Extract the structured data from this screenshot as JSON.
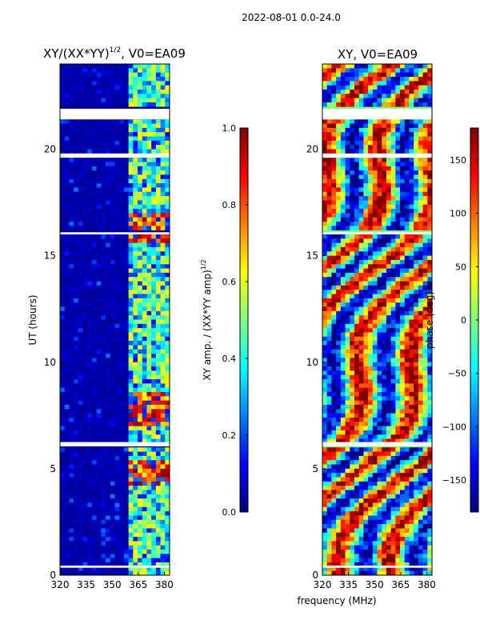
{
  "page_title": "2022-08-01 0.0-24.0",
  "colors": {
    "jet": [
      "#00007f",
      "#0000ff",
      "#007fff",
      "#00ffff",
      "#7fff7f",
      "#ffff00",
      "#ff7f00",
      "#ff0000",
      "#7f0000"
    ],
    "gap": "#ffffff",
    "axis": "#000000"
  },
  "chart_data": [
    {
      "type": "heatmap",
      "title_prefix": "XY/(XX*YY)",
      "title_exponent": "1/2",
      "title_suffix": ", V0=EA09",
      "xlabel": "",
      "ylabel": "UT (hours)",
      "xlim": [
        320,
        383
      ],
      "ylim": [
        0,
        24
      ],
      "xticks": [
        {
          "value": 320,
          "label": "320"
        },
        {
          "value": 335,
          "label": "335"
        },
        {
          "value": 350,
          "label": "350"
        },
        {
          "value": 365,
          "label": "365"
        },
        {
          "value": 380,
          "label": "380"
        }
      ],
      "yticks": [
        {
          "value": 0,
          "label": "0"
        },
        {
          "value": 5,
          "label": "5"
        },
        {
          "value": 10,
          "label": "10"
        },
        {
          "value": 15,
          "label": "15"
        },
        {
          "value": 20,
          "label": "20"
        }
      ],
      "colorbar": {
        "label_prefix": "XY amp. / (XX*YY amp)",
        "label_exponent": "1/2",
        "range": [
          0.0,
          1.0
        ],
        "ticks": [
          {
            "value": 0.0,
            "label": "0.0"
          },
          {
            "value": 0.2,
            "label": "0.2"
          },
          {
            "value": 0.4,
            "label": "0.4"
          },
          {
            "value": 0.6,
            "label": "0.6"
          },
          {
            "value": 0.8,
            "label": "0.8"
          },
          {
            "value": 1.0,
            "label": "1.0"
          }
        ]
      },
      "active_band_mhz": [
        360,
        383
      ],
      "notes": "Mostly near-zero amplitude (dark blue) for 320-360 MHz; strong amplitude (yellow-red) in 360-383 MHz channels, with horizontal white gaps of flagged data."
    },
    {
      "type": "heatmap",
      "title": "XY, V0=EA09",
      "xlabel": "frequency (MHz)",
      "ylabel": "",
      "xlim": [
        320,
        383
      ],
      "ylim": [
        0,
        24
      ],
      "xticks": [
        {
          "value": 320,
          "label": "320"
        },
        {
          "value": 335,
          "label": "335"
        },
        {
          "value": 350,
          "label": "350"
        },
        {
          "value": 365,
          "label": "365"
        },
        {
          "value": 380,
          "label": "380"
        }
      ],
      "yticks": [
        {
          "value": 0,
          "label": "0"
        },
        {
          "value": 5,
          "label": "5"
        },
        {
          "value": 10,
          "label": "10"
        },
        {
          "value": 15,
          "label": "15"
        },
        {
          "value": 20,
          "label": "20"
        }
      ],
      "colorbar": {
        "label": "phase (deg)",
        "range": [
          -180,
          180
        ],
        "ticks": [
          {
            "value": -150,
            "label": "−150"
          },
          {
            "value": -100,
            "label": "−100"
          },
          {
            "value": -50,
            "label": "−50"
          },
          {
            "value": 0,
            "label": "0"
          },
          {
            "value": 50,
            "label": "50"
          },
          {
            "value": 100,
            "label": "100"
          },
          {
            "value": 150,
            "label": "150"
          }
        ]
      },
      "notes": "Phase spans the full -180..180 range with noisy structure across all frequencies and times."
    }
  ],
  "gaps_hours": [
    {
      "start": 21.4,
      "end": 21.9
    },
    {
      "start": 19.6,
      "end": 19.8
    },
    {
      "start": 16.0,
      "end": 16.1
    },
    {
      "start": 6.05,
      "end": 6.25
    },
    {
      "start": 0.35,
      "end": 0.45
    }
  ]
}
